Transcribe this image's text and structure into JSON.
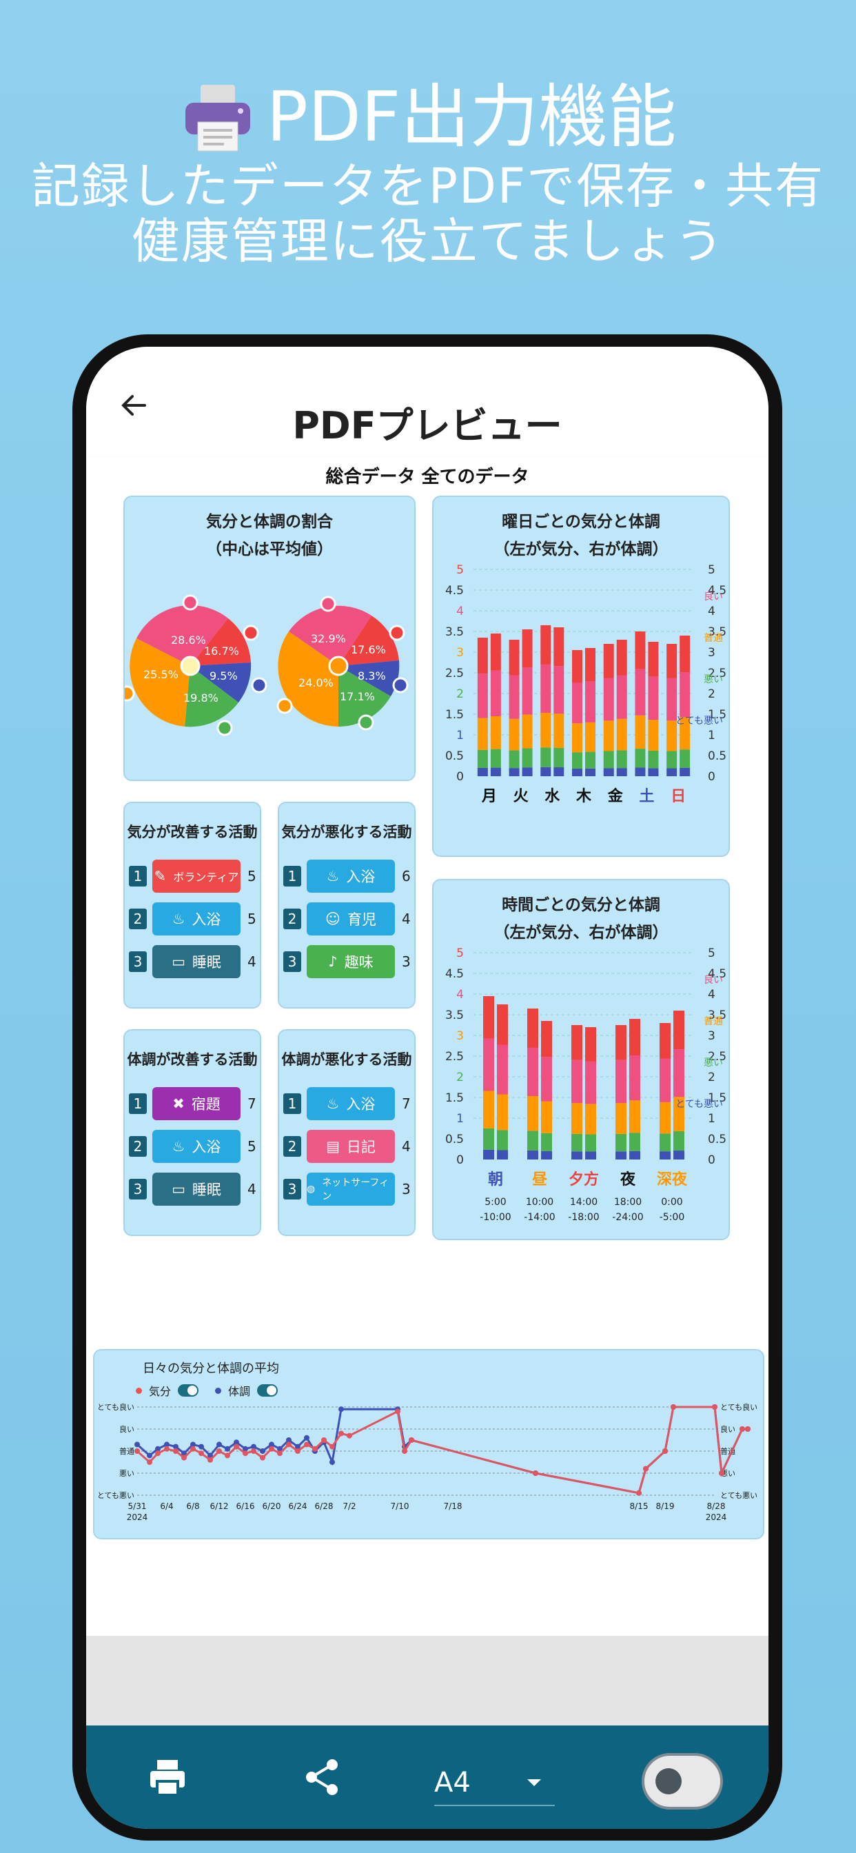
{
  "hero": {
    "title": "PDF出力機能",
    "line2": "記録したデータをPDFで保存・共有",
    "line3": "健康管理に役立てましょう"
  },
  "appbar": {
    "title": "PDFプレビュー"
  },
  "doc": {
    "title": "総合データ 全てのデータ",
    "pie_card": {
      "title1": "気分と体調の割合",
      "title2": "（中心は平均値）",
      "mood_slices": [
        "28.6%",
        "16.7%",
        "9.5%",
        "19.8%",
        "25.5%"
      ],
      "body_slices": [
        "32.9%",
        "17.6%",
        "8.3%",
        "17.1%",
        "24.0%"
      ]
    },
    "weekday_card": {
      "title1": "曜日ごとの気分と体調",
      "title2": "（左が気分、右が体調）"
    },
    "time_card": {
      "title1": "時間ごとの気分と体調",
      "title2": "（左が気分、右が体調）"
    },
    "mood_up": {
      "title": "気分が改善する活動",
      "items": [
        {
          "n": "1",
          "label": "ボランティア",
          "count": "5",
          "color": "#ef4a4a"
        },
        {
          "n": "2",
          "label": "入浴",
          "count": "5",
          "color": "#29a9e1"
        },
        {
          "n": "3",
          "label": "睡眠",
          "count": "4",
          "color": "#2a6f86"
        }
      ]
    },
    "mood_down": {
      "title": "気分が悪化する活動",
      "items": [
        {
          "n": "1",
          "label": "入浴",
          "count": "6",
          "color": "#29a9e1"
        },
        {
          "n": "2",
          "label": "育児",
          "count": "4",
          "color": "#29a9e1"
        },
        {
          "n": "3",
          "label": "趣味",
          "count": "3",
          "color": "#49b24f"
        }
      ]
    },
    "body_up": {
      "title": "体調が改善する活動",
      "items": [
        {
          "n": "1",
          "label": "宿題",
          "count": "7",
          "color": "#9b2fb0"
        },
        {
          "n": "2",
          "label": "入浴",
          "count": "5",
          "color": "#29a9e1"
        },
        {
          "n": "3",
          "label": "睡眠",
          "count": "4",
          "color": "#2a6f86"
        }
      ]
    },
    "body_down": {
      "title": "体調が悪化する活動",
      "items": [
        {
          "n": "1",
          "label": "入浴",
          "count": "7",
          "color": "#29a9e1"
        },
        {
          "n": "2",
          "label": "日記",
          "count": "4",
          "color": "#ee5a86"
        },
        {
          "n": "3",
          "label": "ネットサーフィン",
          "count": "3",
          "color": "#29a9e1"
        }
      ]
    },
    "daily_card": {
      "title": "日々の気分と体調の平均",
      "legend_mood": "気分",
      "legend_body": "体調"
    }
  },
  "bottom": {
    "paper": "A4"
  },
  "chart_data": [
    {
      "type": "bar",
      "title": "曜日ごとの気分と体調",
      "categories": [
        "月",
        "火",
        "水",
        "木",
        "金",
        "土",
        "日"
      ],
      "ylim": [
        0,
        5
      ],
      "y_ticks": [
        "0",
        "0.5",
        "1",
        "1.5",
        "2",
        "2.5",
        "3",
        "3.5",
        "4",
        "4.5",
        "5"
      ],
      "right_labels": [
        "とても良い",
        "良い",
        "普通",
        "悪い",
        "とても悪い"
      ],
      "series": [
        {
          "name": "気分",
          "values": [
            3.35,
            3.3,
            3.65,
            3.05,
            3.2,
            3.5,
            3.2
          ]
        },
        {
          "name": "体調",
          "values": [
            3.45,
            3.55,
            3.6,
            3.1,
            3.3,
            3.25,
            3.4
          ]
        }
      ]
    },
    {
      "type": "bar",
      "title": "時間ごとの気分と体調",
      "categories": [
        "朝",
        "昼",
        "夕方",
        "夜",
        "深夜"
      ],
      "sublabels": [
        "5:00 -10:00",
        "10:00 -14:00",
        "14:00 -18:00",
        "18:00 -24:00",
        "0:00 -5:00"
      ],
      "ylim": [
        0,
        5
      ],
      "series": [
        {
          "name": "気分",
          "values": [
            3.95,
            3.65,
            3.25,
            3.25,
            3.3
          ]
        },
        {
          "name": "体調",
          "values": [
            3.75,
            3.35,
            3.2,
            3.4,
            3.6
          ]
        }
      ]
    },
    {
      "type": "line",
      "title": "日々の気分と体調の平均",
      "x_ticks": [
        "5/31 2024",
        "6/4",
        "6/8",
        "6/12",
        "6/16",
        "6/20",
        "6/24",
        "6/28",
        "7/2",
        "7/10",
        "7/18",
        "8/15",
        "8/19",
        "8/28 2024"
      ],
      "ylim": [
        1,
        5
      ],
      "y_labels": [
        "とても良い",
        "良い",
        "普通",
        "悪い",
        "とても悪い"
      ]
    }
  ]
}
